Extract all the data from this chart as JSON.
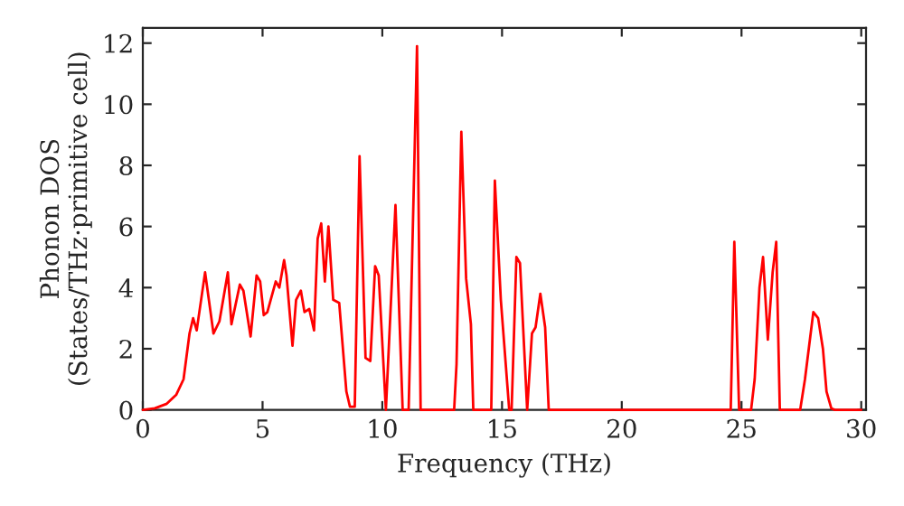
{
  "chart_data": {
    "type": "line",
    "xlabel": "Frequency (THz)",
    "ylabel": "Phonon DOS\n(States/THz·primitive cell)",
    "xlim": [
      0,
      30.2
    ],
    "ylim": [
      0,
      12.5
    ],
    "xticks": [
      0,
      5,
      10,
      15,
      20,
      25,
      30
    ],
    "yticks": [
      0,
      2,
      4,
      6,
      8,
      10,
      12
    ],
    "grid": false,
    "legend": false,
    "marker": "none",
    "line_style": "solid",
    "series": [
      {
        "color": "#ff0000",
        "x": [
          0,
          0.5,
          1.0,
          1.4,
          1.7,
          1.95,
          2.1,
          2.25,
          2.6,
          2.95,
          3.2,
          3.55,
          3.7,
          4.05,
          4.2,
          4.5,
          4.75,
          4.9,
          5.05,
          5.2,
          5.55,
          5.7,
          5.9,
          6.0,
          6.25,
          6.4,
          6.6,
          6.75,
          6.95,
          7.15,
          7.3,
          7.45,
          7.6,
          7.75,
          7.95,
          8.2,
          8.5,
          8.65,
          8.85,
          9.05,
          9.3,
          9.5,
          9.7,
          9.85,
          10.15,
          10.55,
          10.85,
          11.1,
          11.45,
          11.6,
          13.0,
          13.1,
          13.3,
          13.5,
          13.7,
          13.8,
          14.55,
          14.7,
          14.95,
          15.3,
          15.4,
          15.6,
          15.75,
          16.05,
          16.25,
          16.4,
          16.6,
          16.8,
          16.95,
          24.55,
          24.7,
          24.9,
          25.4,
          25.55,
          25.75,
          25.9,
          26.1,
          26.3,
          26.45,
          26.6,
          27.45,
          27.65,
          28.0,
          28.2,
          28.4,
          28.55,
          28.75,
          28.9,
          30.0
        ],
        "values": [
          0,
          0.05,
          0.2,
          0.5,
          1.0,
          2.5,
          3.0,
          2.6,
          4.5,
          2.5,
          2.9,
          4.5,
          2.8,
          4.1,
          3.9,
          2.4,
          4.4,
          4.2,
          3.1,
          3.2,
          4.2,
          4.0,
          4.9,
          4.4,
          2.1,
          3.6,
          3.9,
          3.2,
          3.3,
          2.6,
          5.6,
          6.1,
          4.2,
          6.0,
          3.6,
          3.5,
          0.6,
          0.1,
          0.1,
          8.3,
          1.7,
          1.6,
          4.7,
          4.4,
          0,
          6.7,
          0,
          0,
          11.9,
          0,
          0,
          1.5,
          9.1,
          4.3,
          2.8,
          0,
          0,
          7.5,
          3.6,
          0,
          0,
          5.0,
          4.8,
          0,
          2.5,
          2.7,
          3.8,
          2.7,
          0,
          0,
          5.5,
          0,
          0,
          1.0,
          4.0,
          5.0,
          2.3,
          4.5,
          5.5,
          0,
          0,
          1.0,
          3.2,
          3.0,
          2.0,
          0.6,
          0.05,
          0,
          0
        ]
      }
    ]
  }
}
